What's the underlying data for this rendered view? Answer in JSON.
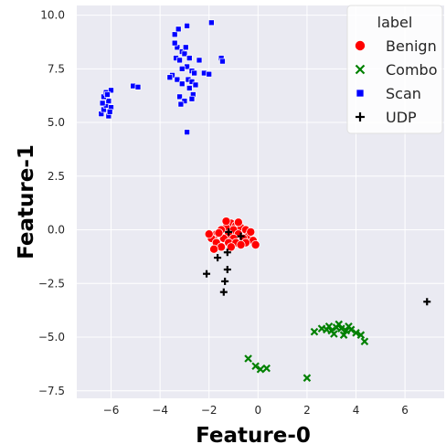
{
  "chart_data": {
    "type": "scatter",
    "title": "",
    "xlabel": "Feature-0",
    "ylabel": "Feature-1",
    "xlim": [
      -7.4,
      7.6
    ],
    "ylim": [
      -7.85,
      10.45
    ],
    "xticks": [
      -6,
      -4,
      -2,
      0,
      2,
      4,
      6
    ],
    "yticks": [
      -7.5,
      -5.0,
      -2.5,
      0.0,
      2.5,
      5.0,
      7.5,
      10.0
    ],
    "xtick_labels": [
      "−6",
      "−4",
      "−2",
      "0",
      "2",
      "4",
      "6"
    ],
    "ytick_labels": [
      "−7.5",
      "−5.0",
      "−2.5",
      "0.0",
      "2.5",
      "5.0",
      "7.5",
      "10.0"
    ],
    "grid": true,
    "background": "#eaeaf2",
    "legend": {
      "title": "label",
      "placement": "top-right",
      "entries": [
        {
          "label": "Benign",
          "color": "#ff0000",
          "marker": "circle"
        },
        {
          "label": "Combo",
          "color": "#008000",
          "marker": "x"
        },
        {
          "label": "Scan",
          "color": "#0000ff",
          "marker": "square"
        },
        {
          "label": "UDP",
          "color": "#000000",
          "marker": "plus"
        }
      ]
    },
    "series": [
      {
        "name": "Benign",
        "color": "#ff0000",
        "marker": "circle",
        "points": [
          [
            -1.1,
            0.3
          ],
          [
            -0.9,
            0.2
          ],
          [
            -1.3,
            0.1
          ],
          [
            -0.7,
            0.1
          ],
          [
            -1.5,
            0.0
          ],
          [
            -1.0,
            0.0
          ],
          [
            -0.5,
            0.0
          ],
          [
            -1.7,
            -0.2
          ],
          [
            -1.2,
            -0.2
          ],
          [
            -0.8,
            -0.2
          ],
          [
            -0.4,
            -0.3
          ],
          [
            -1.9,
            -0.4
          ],
          [
            -1.4,
            -0.4
          ],
          [
            -1.0,
            -0.4
          ],
          [
            -0.6,
            -0.4
          ],
          [
            -0.2,
            -0.5
          ],
          [
            -1.7,
            -0.6
          ],
          [
            -1.2,
            -0.6
          ],
          [
            -0.9,
            -0.6
          ],
          [
            -0.5,
            -0.6
          ],
          [
            -0.1,
            -0.7
          ],
          [
            -1.5,
            -0.8
          ],
          [
            -1.1,
            -0.8
          ],
          [
            -0.7,
            -0.7
          ],
          [
            -1.8,
            -0.9
          ],
          [
            -1.3,
            0.4
          ],
          [
            -0.8,
            0.35
          ],
          [
            -1.6,
            -0.15
          ],
          [
            -0.3,
            -0.1
          ],
          [
            -2.0,
            -0.2
          ]
        ]
      },
      {
        "name": "Combo",
        "color": "#008000",
        "marker": "x",
        "points": [
          [
            2.3,
            -4.75
          ],
          [
            4.35,
            -5.2
          ],
          [
            -0.4,
            -6.0
          ],
          [
            -0.1,
            -6.35
          ],
          [
            0.1,
            -6.5
          ],
          [
            0.35,
            -6.45
          ],
          [
            2.0,
            -6.9
          ],
          [
            2.6,
            -4.6
          ],
          [
            2.8,
            -4.65
          ],
          [
            3.0,
            -4.7
          ],
          [
            3.2,
            -4.55
          ],
          [
            3.4,
            -4.6
          ],
          [
            3.6,
            -4.7
          ],
          [
            3.8,
            -4.65
          ],
          [
            4.0,
            -4.8
          ],
          [
            3.1,
            -4.85
          ],
          [
            3.5,
            -4.9
          ],
          [
            2.9,
            -4.5
          ],
          [
            3.3,
            -4.4
          ],
          [
            3.7,
            -4.5
          ],
          [
            4.2,
            -4.9
          ]
        ]
      },
      {
        "name": "Scan",
        "color": "#0000ff",
        "marker": "square",
        "points": [
          [
            -6.4,
            5.4
          ],
          [
            -6.3,
            5.6
          ],
          [
            -6.2,
            5.8
          ],
          [
            -6.1,
            6.0
          ],
          [
            -6.3,
            6.2
          ],
          [
            -6.2,
            6.4
          ],
          [
            -6.0,
            6.5
          ],
          [
            -6.1,
            5.3
          ],
          [
            -6.0,
            5.7
          ],
          [
            -6.35,
            5.9
          ],
          [
            -6.15,
            6.3
          ],
          [
            -6.05,
            5.5
          ],
          [
            -5.1,
            6.7
          ],
          [
            -4.9,
            6.65
          ],
          [
            -3.4,
            9.1
          ],
          [
            -3.3,
            8.5
          ],
          [
            -3.35,
            8.0
          ],
          [
            -3.1,
            8.3
          ],
          [
            -3.2,
            7.9
          ],
          [
            -3.0,
            8.2
          ],
          [
            -3.5,
            7.2
          ],
          [
            -3.3,
            7.0
          ],
          [
            -3.1,
            6.8
          ],
          [
            -3.2,
            6.2
          ],
          [
            -3.0,
            6.0
          ],
          [
            -3.15,
            5.85
          ],
          [
            -2.9,
            9.5
          ],
          [
            -2.8,
            8.0
          ],
          [
            -2.9,
            7.6
          ],
          [
            -2.7,
            7.4
          ],
          [
            -2.85,
            7.0
          ],
          [
            -2.6,
            7.3
          ],
          [
            -2.7,
            6.9
          ],
          [
            -2.8,
            6.6
          ],
          [
            -2.65,
            6.3
          ],
          [
            -2.7,
            6.1
          ],
          [
            -2.9,
            4.55
          ],
          [
            -3.25,
            9.35
          ],
          [
            -3.4,
            8.7
          ],
          [
            -3.1,
            7.5
          ],
          [
            -2.95,
            8.5
          ],
          [
            -2.4,
            7.9
          ],
          [
            -2.2,
            7.3
          ],
          [
            -2.0,
            7.25
          ],
          [
            -1.9,
            9.65
          ],
          [
            -1.5,
            8.0
          ],
          [
            -1.45,
            7.85
          ],
          [
            -3.6,
            7.1
          ],
          [
            -2.55,
            6.75
          ]
        ]
      },
      {
        "name": "UDP",
        "color": "#000000",
        "marker": "plus",
        "points": [
          [
            -1.2,
            -0.1
          ],
          [
            -0.7,
            -0.3
          ],
          [
            -1.25,
            -1.05
          ],
          [
            -1.65,
            -1.3
          ],
          [
            -1.25,
            -1.85
          ],
          [
            -2.1,
            -2.05
          ],
          [
            -1.35,
            -2.4
          ],
          [
            -1.4,
            -2.9
          ],
          [
            6.9,
            -3.35
          ]
        ]
      }
    ]
  }
}
